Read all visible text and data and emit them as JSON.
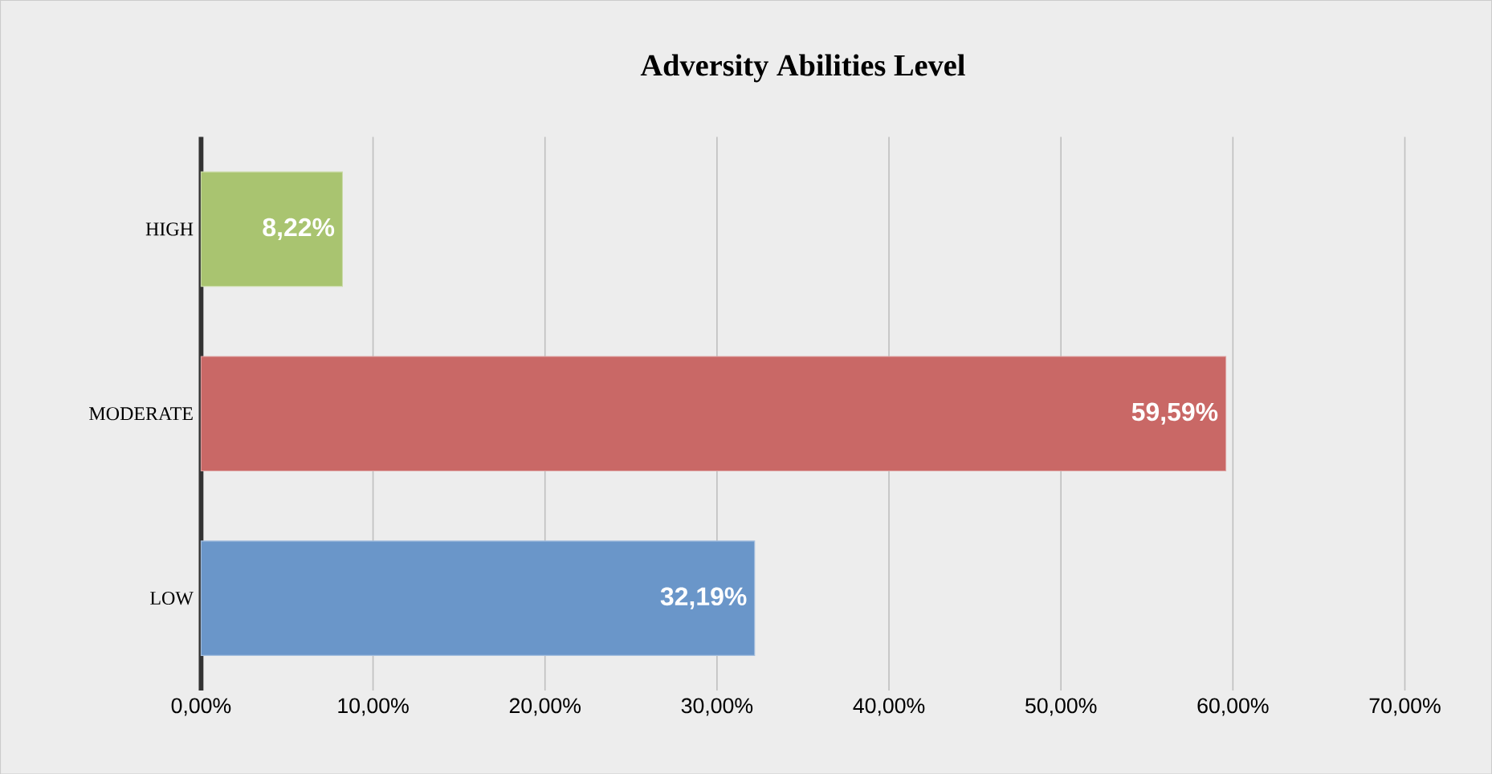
{
  "chart_data": {
    "type": "bar",
    "orientation": "horizontal",
    "title": "Adversity Abilities Level",
    "categories": [
      "HIGH",
      "MODERATE",
      "LOW"
    ],
    "values": [
      8.22,
      59.59,
      32.19
    ],
    "colors": [
      "#a9c470",
      "#c96866",
      "#6a96c9"
    ],
    "value_labels": [
      "8,22%",
      "59,59%",
      "32,19%"
    ],
    "xlim": [
      0,
      70
    ],
    "xticks": [
      {
        "value": 0,
        "label": "0,00%"
      },
      {
        "value": 10,
        "label": "10,00%"
      },
      {
        "value": 20,
        "label": "20,00%"
      },
      {
        "value": 30,
        "label": "30,00%"
      },
      {
        "value": 40,
        "label": "40,00%"
      },
      {
        "value": 50,
        "label": "50,00%"
      },
      {
        "value": 60,
        "label": "60,00%"
      },
      {
        "value": 70,
        "label": "70,00%"
      }
    ],
    "grid": "x"
  }
}
